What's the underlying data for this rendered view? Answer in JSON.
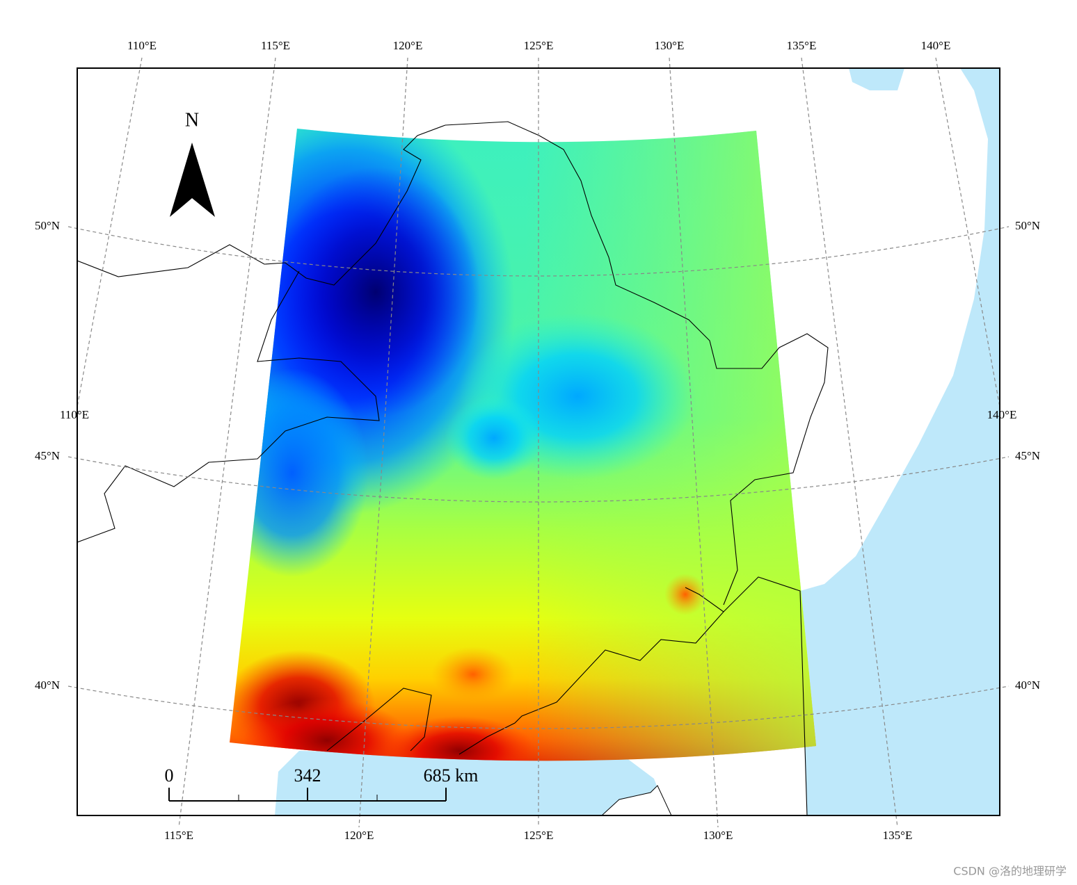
{
  "graticule_labels": {
    "top": [
      "110°E",
      "115°E",
      "120°E",
      "125°E",
      "130°E",
      "135°E",
      "140°E"
    ],
    "bottom": [
      "115°E",
      "120°E",
      "125°E",
      "130°E",
      "135°E"
    ],
    "left": [
      "50°N",
      "45°N",
      "40°N",
      "110°E"
    ],
    "right": [
      "50°N",
      "45°N",
      "40°N",
      "140°E"
    ]
  },
  "north_arrow": {
    "label": "N"
  },
  "scale_bar": {
    "labels": [
      "0",
      "342",
      "685 km"
    ]
  },
  "watermark": "CSDN @洛的地理研学"
}
